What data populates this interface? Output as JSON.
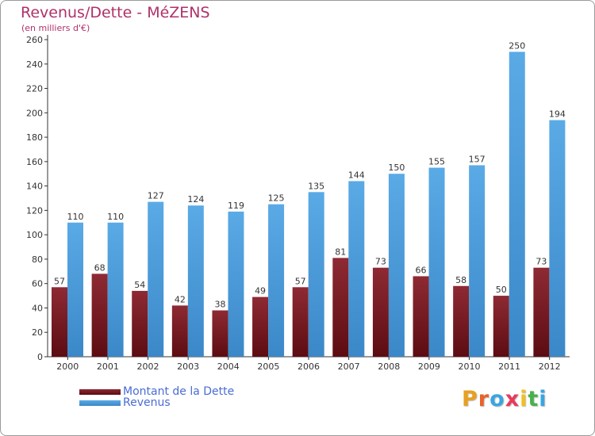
{
  "title": "Revenus/Dette - MéZENS",
  "subtitle": "(en milliers d'€)",
  "colors": {
    "dette": "#7a1a22",
    "revenus": "#4d9fe0",
    "title": "#b0306a",
    "legend_text": "#4a6cd4"
  },
  "legend": [
    {
      "label": "Montant de la Dette",
      "icon": "dette-swatch"
    },
    {
      "label": "Revenus",
      "icon": "revenus-swatch"
    }
  ],
  "logo": {
    "text": "Proxiti",
    "letter_colors": [
      "#e8a020",
      "#e8622a",
      "#3aa5e0",
      "#e83a5a",
      "#f0c020",
      "#4ab04a",
      "#3aa5e0"
    ]
  },
  "chart_data": {
    "type": "bar",
    "title": "Revenus/Dette - MéZENS",
    "subtitle": "(en milliers d'€)",
    "categories": [
      "2000",
      "2001",
      "2002",
      "2003",
      "2004",
      "2005",
      "2006",
      "2007",
      "2008",
      "2009",
      "2010",
      "2011",
      "2012"
    ],
    "series": [
      {
        "name": "Montant de la Dette",
        "values": [
          57,
          68,
          54,
          42,
          38,
          49,
          57,
          81,
          73,
          66,
          58,
          50,
          73
        ]
      },
      {
        "name": "Revenus",
        "values": [
          110,
          110,
          127,
          124,
          119,
          125,
          135,
          144,
          150,
          155,
          157,
          250,
          194
        ]
      }
    ],
    "yticks": [
      0,
      20,
      40,
      60,
      80,
      100,
      120,
      140,
      160,
      180,
      200,
      220,
      240,
      260
    ],
    "ylim": [
      0,
      260
    ],
    "grid": false,
    "legend_position": "bottom-left"
  }
}
